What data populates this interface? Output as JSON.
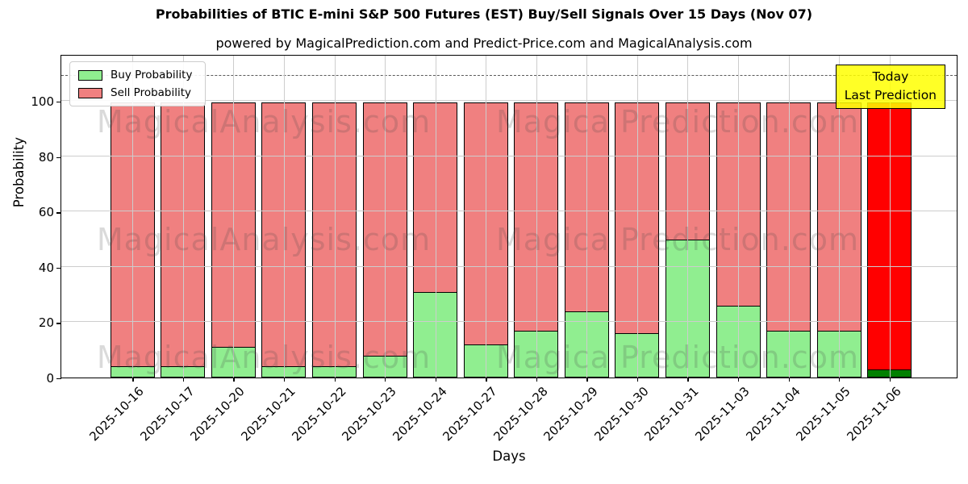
{
  "title": "Probabilities of BTIC E-mini S&P 500 Futures (EST) Buy/Sell Signals Over 15 Days (Nov 07)",
  "subtitle": "powered by MagicalPrediction.com and Predict-Price.com and MagicalAnalysis.com",
  "axes": {
    "x_label": "Days",
    "y_label": "Probability"
  },
  "legend": {
    "items": [
      {
        "label": "Buy Probability",
        "color": "#90ee90"
      },
      {
        "label": "Sell Probability",
        "color": "#f08080"
      }
    ]
  },
  "annotation": {
    "line1": "Today",
    "line2": "Last Prediction",
    "bg_color": "#ffff00"
  },
  "watermarks": {
    "left": "MagicalAnalysis.com",
    "right": "Magica Prediction.com"
  },
  "chart_data": {
    "type": "bar",
    "stacked": true,
    "title": "Probabilities of BTIC E-mini S&P 500 Futures (EST) Buy/Sell Signals Over 15 Days (Nov 07)",
    "xlabel": "Days",
    "ylabel": "Probability",
    "categories": [
      "2025-10-16",
      "2025-10-17",
      "2025-10-20",
      "2025-10-21",
      "2025-10-22",
      "2025-10-23",
      "2025-10-24",
      "2025-10-27",
      "2025-10-28",
      "2025-10-29",
      "2025-10-30",
      "2025-10-31",
      "2025-11-03",
      "2025-11-04",
      "2025-11-05",
      "2025-11-06"
    ],
    "series": [
      {
        "name": "Buy Probability",
        "color": "#90ee90",
        "values": [
          4,
          4,
          11,
          4,
          4,
          8,
          31,
          12,
          17,
          24,
          16,
          50,
          26,
          17,
          17,
          3
        ]
      },
      {
        "name": "Sell Probability",
        "color": "#f08080",
        "values": [
          96,
          96,
          89,
          96,
          96,
          92,
          69,
          88,
          83,
          76,
          84,
          50,
          74,
          83,
          83,
          97
        ]
      }
    ],
    "highlight_last_bar": {
      "index": 15,
      "buy_color": "#008000",
      "sell_color": "#ff0000"
    },
    "y_ticks": [
      0,
      20,
      40,
      60,
      80,
      100
    ],
    "ylim": [
      0,
      116.6
    ],
    "dashed_line_y": 110,
    "grid": true,
    "legend_position": "upper left"
  }
}
